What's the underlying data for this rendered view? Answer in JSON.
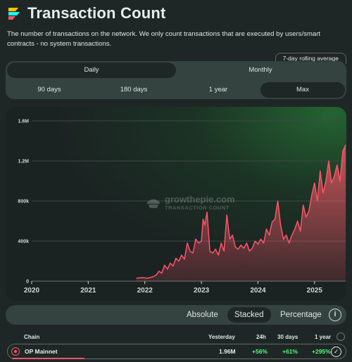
{
  "header": {
    "title": "Transaction Count",
    "description": "The number of transactions on the network. We only count transactions that are executed by users/smart contracts - no system transactions."
  },
  "rolling_label": "7-day rolling average",
  "granularity": {
    "options": [
      "Daily",
      "Monthly"
    ],
    "selected": "Daily"
  },
  "timespan": {
    "options": [
      "90 days",
      "180 days",
      "1 year",
      "Max"
    ],
    "selected": "Max"
  },
  "watermark": {
    "brand": "growthepie.com",
    "metric": "TRANSACTION COUNT"
  },
  "display_modes": {
    "options": [
      "Absolute",
      "Stacked",
      "Percentage"
    ],
    "selected": "Stacked"
  },
  "table": {
    "headers": {
      "chain": "Chain",
      "yesterday": "Yesterday",
      "h24": "24h",
      "d30": "30 days",
      "y1": "1 year"
    },
    "rows": [
      {
        "chain": "OP Mainnet",
        "yesterday": "1.96M",
        "h24": "+56%",
        "d30": "+61%",
        "y1": "+295%"
      }
    ]
  },
  "colors": {
    "series": "#fe5468",
    "accent_green": "#4cff7e",
    "background": "#1f2726"
  },
  "chart_data": {
    "type": "area",
    "title": "",
    "xlabel": "",
    "ylabel": "",
    "y_ticks": [
      "0",
      "400k",
      "800k",
      "1.2M",
      "1.6M"
    ],
    "x_ticks": [
      "2020",
      "2021",
      "2022",
      "2023",
      "2024",
      "2025"
    ],
    "ylim": [
      0,
      1600000
    ],
    "xlim": [
      2020.0,
      2025.55
    ],
    "grid": true,
    "legend": "none",
    "series": [
      {
        "name": "OP Mainnet",
        "x": [
          2021.85,
          2021.95,
          2022.05,
          2022.15,
          2022.2,
          2022.25,
          2022.3,
          2022.35,
          2022.4,
          2022.45,
          2022.5,
          2022.55,
          2022.6,
          2022.65,
          2022.7,
          2022.75,
          2022.8,
          2022.85,
          2022.9,
          2022.95,
          2023.0,
          2023.03,
          2023.06,
          2023.1,
          2023.15,
          2023.2,
          2023.25,
          2023.3,
          2023.35,
          2023.4,
          2023.45,
          2023.5,
          2023.55,
          2023.6,
          2023.65,
          2023.7,
          2023.75,
          2023.8,
          2023.85,
          2023.9,
          2023.95,
          2024.0,
          2024.05,
          2024.1,
          2024.15,
          2024.2,
          2024.25,
          2024.3,
          2024.35,
          2024.4,
          2024.45,
          2024.5,
          2024.55,
          2024.6,
          2024.65,
          2024.7,
          2024.75,
          2024.8,
          2024.85,
          2024.9,
          2024.95,
          2025.0,
          2025.05,
          2025.1,
          2025.15,
          2025.2,
          2025.25,
          2025.3,
          2025.35,
          2025.4,
          2025.45,
          2025.5,
          2025.55
        ],
        "values": [
          30000,
          35000,
          30000,
          45000,
          60000,
          100000,
          80000,
          160000,
          120000,
          180000,
          150000,
          230000,
          200000,
          260000,
          220000,
          380000,
          300000,
          280000,
          420000,
          380000,
          400000,
          620000,
          560000,
          690000,
          300000,
          280000,
          320000,
          260000,
          380000,
          300000,
          660000,
          420000,
          460000,
          340000,
          320000,
          360000,
          330000,
          380000,
          300000,
          330000,
          400000,
          370000,
          420000,
          380000,
          520000,
          460000,
          590000,
          620000,
          800000,
          560000,
          420000,
          460000,
          380000,
          460000,
          520000,
          600000,
          500000,
          760000,
          640000,
          700000,
          860000,
          980000,
          800000,
          1100000,
          880000,
          1000000,
          1200000,
          980000,
          1050000,
          1160000,
          1000000,
          1300000,
          1360000
        ]
      }
    ]
  }
}
